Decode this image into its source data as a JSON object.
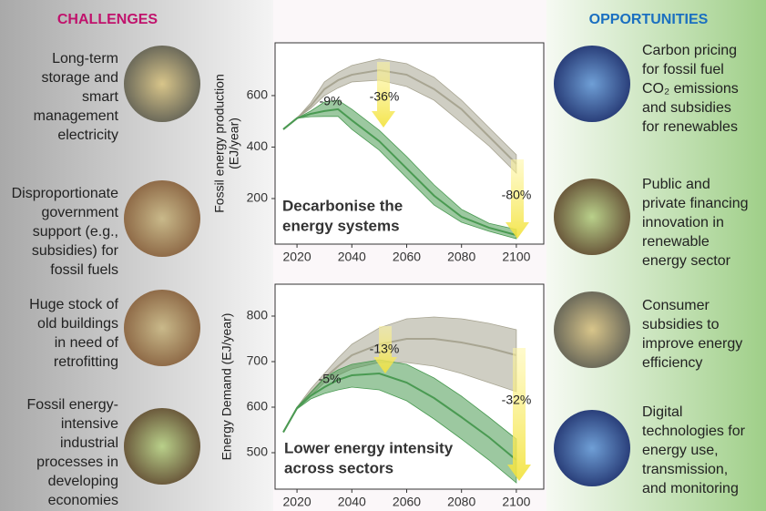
{
  "challenges": {
    "title": "CHALLENGES",
    "items": [
      [
        "Long-term",
        "storage and",
        "smart",
        "management",
        "electricity"
      ],
      [
        "Disproportionate",
        "government",
        "support (e.g.,",
        "subsidies) for",
        "fossil fuels"
      ],
      [
        "Huge stock of",
        "old buildings",
        "in need of",
        "retrofitting"
      ],
      [
        "Fossil energy-",
        "intensive",
        "industrial",
        "processes in",
        "developing",
        "economies"
      ]
    ]
  },
  "opportunities": {
    "title": "OPPORTUNITIES",
    "items": [
      [
        "Carbon pricing",
        "for fossil fuel",
        "CO₂ emissions",
        "and subsidies",
        "for renewables"
      ],
      [
        "Public and",
        "private financing",
        "innovation in",
        "renewable",
        "energy sector"
      ],
      [
        "Consumer",
        "subsidies to",
        "improve energy",
        "efficiency"
      ],
      [
        "Digital",
        "technologies for",
        "energy use,",
        "transmission,",
        "and monitoring"
      ]
    ]
  },
  "chart_data": [
    {
      "type": "line",
      "ylabel": [
        "Fossil energy production",
        "(EJ/year)"
      ],
      "x": [
        2015,
        2020,
        2025,
        2030,
        2035,
        2040,
        2050,
        2060,
        2070,
        2080,
        2090,
        2100
      ],
      "xlim": [
        2012,
        2110
      ],
      "xticks": [
        2020,
        2040,
        2060,
        2080,
        2100
      ],
      "ylim": [
        23,
        805
      ],
      "yticks": [
        200,
        400,
        600
      ],
      "series": [
        {
          "color": "#a8a592",
          "values": [
            469,
            512,
            560,
            625,
            660,
            681,
            699,
            681,
            625,
            547,
            441,
            335
          ],
          "upper": [
            469,
            512,
            572,
            653,
            690,
            717,
            742,
            724,
            671,
            582,
            476,
            370
          ],
          "lower": [
            469,
            512,
            550,
            600,
            630,
            653,
            660,
            635,
            582,
            494,
            405,
            299
          ]
        },
        {
          "color": "#4a9a52",
          "values": [
            469,
            512,
            529,
            540,
            547,
            504,
            423,
            317,
            211,
            129,
            87,
            58
          ],
          "upper": [
            469,
            512,
            540,
            575,
            582,
            547,
            465,
            363,
            253,
            158,
            104,
            80
          ],
          "lower": [
            469,
            512,
            518,
            519,
            519,
            469,
            388,
            281,
            175,
            108,
            73,
            44
          ]
        }
      ],
      "annotations": [
        "-9%",
        "-36%",
        "-80%"
      ],
      "caption": [
        "Decarbonise the",
        "energy systems"
      ]
    },
    {
      "type": "line",
      "ylabel": [
        "Energy Demand (EJ/year)"
      ],
      "x": [
        2015,
        2020,
        2025,
        2030,
        2035,
        2040,
        2050,
        2060,
        2070,
        2080,
        2090,
        2100
      ],
      "xlim": [
        2012,
        2110
      ],
      "xticks": [
        2020,
        2040,
        2060,
        2080,
        2100
      ],
      "ylim": [
        420,
        870
      ],
      "yticks": [
        500,
        600,
        700,
        800
      ],
      "series": [
        {
          "color": "#a8a592",
          "values": [
            545,
            598,
            632,
            664,
            690,
            714,
            738,
            750,
            750,
            742,
            730,
            714
          ],
          "upper": [
            545,
            600,
            640,
            674,
            708,
            738,
            774,
            794,
            798,
            794,
            784,
            770
          ],
          "lower": [
            545,
            596,
            625,
            654,
            670,
            684,
            698,
            698,
            690,
            674,
            654,
            634
          ]
        },
        {
          "color": "#4a9a52",
          "values": [
            545,
            598,
            625,
            644,
            660,
            670,
            674,
            654,
            620,
            578,
            534,
            484
          ],
          "upper": [
            545,
            600,
            632,
            664,
            682,
            694,
            704,
            694,
            664,
            624,
            578,
            530
          ],
          "lower": [
            545,
            596,
            618,
            630,
            638,
            644,
            638,
            614,
            574,
            530,
            484,
            434
          ]
        }
      ],
      "annotations": [
        "-5%",
        "-13%",
        "-32%"
      ],
      "caption": [
        "Lower energy intensity",
        "across sectors"
      ]
    }
  ]
}
